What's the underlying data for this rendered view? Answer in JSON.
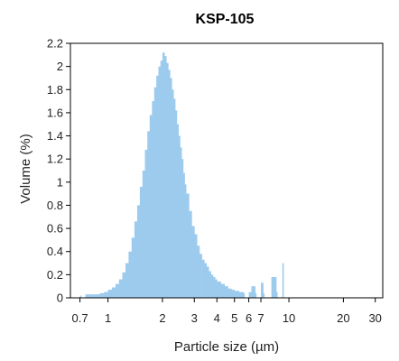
{
  "chart_data": {
    "type": "bar",
    "title": "KSP-105",
    "xlabel": "Particle size (µm)",
    "ylabel": "Volume (%)",
    "x_scale": "log",
    "xlim": [
      0.62,
      33
    ],
    "ylim": [
      0,
      2.2
    ],
    "grid": false,
    "x_ticks": [
      0.7,
      1,
      2,
      3,
      4,
      5,
      6,
      7,
      10,
      20,
      30
    ],
    "x_tick_labels": [
      "0.7",
      "1",
      "2",
      "3",
      "4",
      "5",
      "6",
      "7",
      "10",
      "20",
      "30"
    ],
    "y_ticks": [
      0,
      0.2,
      0.4,
      0.6,
      0.8,
      1,
      1.2,
      1.4,
      1.6,
      1.8,
      2,
      2.2
    ],
    "y_tick_labels": [
      "0",
      "0.2",
      "0.4",
      "0.6",
      "0.8",
      "1",
      "1.2",
      "1.4",
      "1.6",
      "1.8",
      "2",
      "2.2"
    ],
    "series": [
      {
        "color": "#9ccbee",
        "x": [
          0.7,
          0.75,
          0.8,
          0.85,
          0.9,
          0.95,
          1.0,
          1.05,
          1.1,
          1.15,
          1.2,
          1.25,
          1.3,
          1.35,
          1.4,
          1.45,
          1.5,
          1.55,
          1.6,
          1.65,
          1.7,
          1.75,
          1.8,
          1.85,
          1.9,
          1.95,
          2.0,
          2.05,
          2.1,
          2.15,
          2.2,
          2.25,
          2.3,
          2.35,
          2.4,
          2.45,
          2.5,
          2.55,
          2.6,
          2.65,
          2.7,
          2.8,
          2.9,
          3.0,
          3.1,
          3.2,
          3.3,
          3.4,
          3.5,
          3.6,
          3.7,
          3.8,
          3.9,
          4.0,
          4.2,
          4.4,
          4.6,
          4.8,
          5.0,
          5.3,
          5.6,
          6.0,
          6.2,
          6.5,
          7.0,
          7.2,
          8.0,
          8.5,
          9.2
        ],
        "values": [
          0.02,
          0.03,
          0.03,
          0.03,
          0.04,
          0.05,
          0.07,
          0.09,
          0.12,
          0.16,
          0.22,
          0.3,
          0.4,
          0.52,
          0.66,
          0.8,
          0.96,
          1.1,
          1.28,
          1.44,
          1.58,
          1.7,
          1.82,
          1.92,
          2.0,
          2.05,
          2.12,
          2.09,
          2.03,
          1.97,
          1.9,
          1.8,
          1.72,
          1.62,
          1.5,
          1.4,
          1.3,
          1.2,
          1.08,
          0.98,
          0.9,
          0.75,
          0.62,
          0.55,
          0.45,
          0.38,
          0.33,
          0.3,
          0.27,
          0.23,
          0.2,
          0.18,
          0.16,
          0.14,
          0.12,
          0.1,
          0.08,
          0.07,
          0.06,
          0.05,
          0.04,
          0.05,
          0.1,
          0.04,
          0.13,
          0.04,
          0.18,
          0.05,
          0.3
        ]
      }
    ]
  }
}
